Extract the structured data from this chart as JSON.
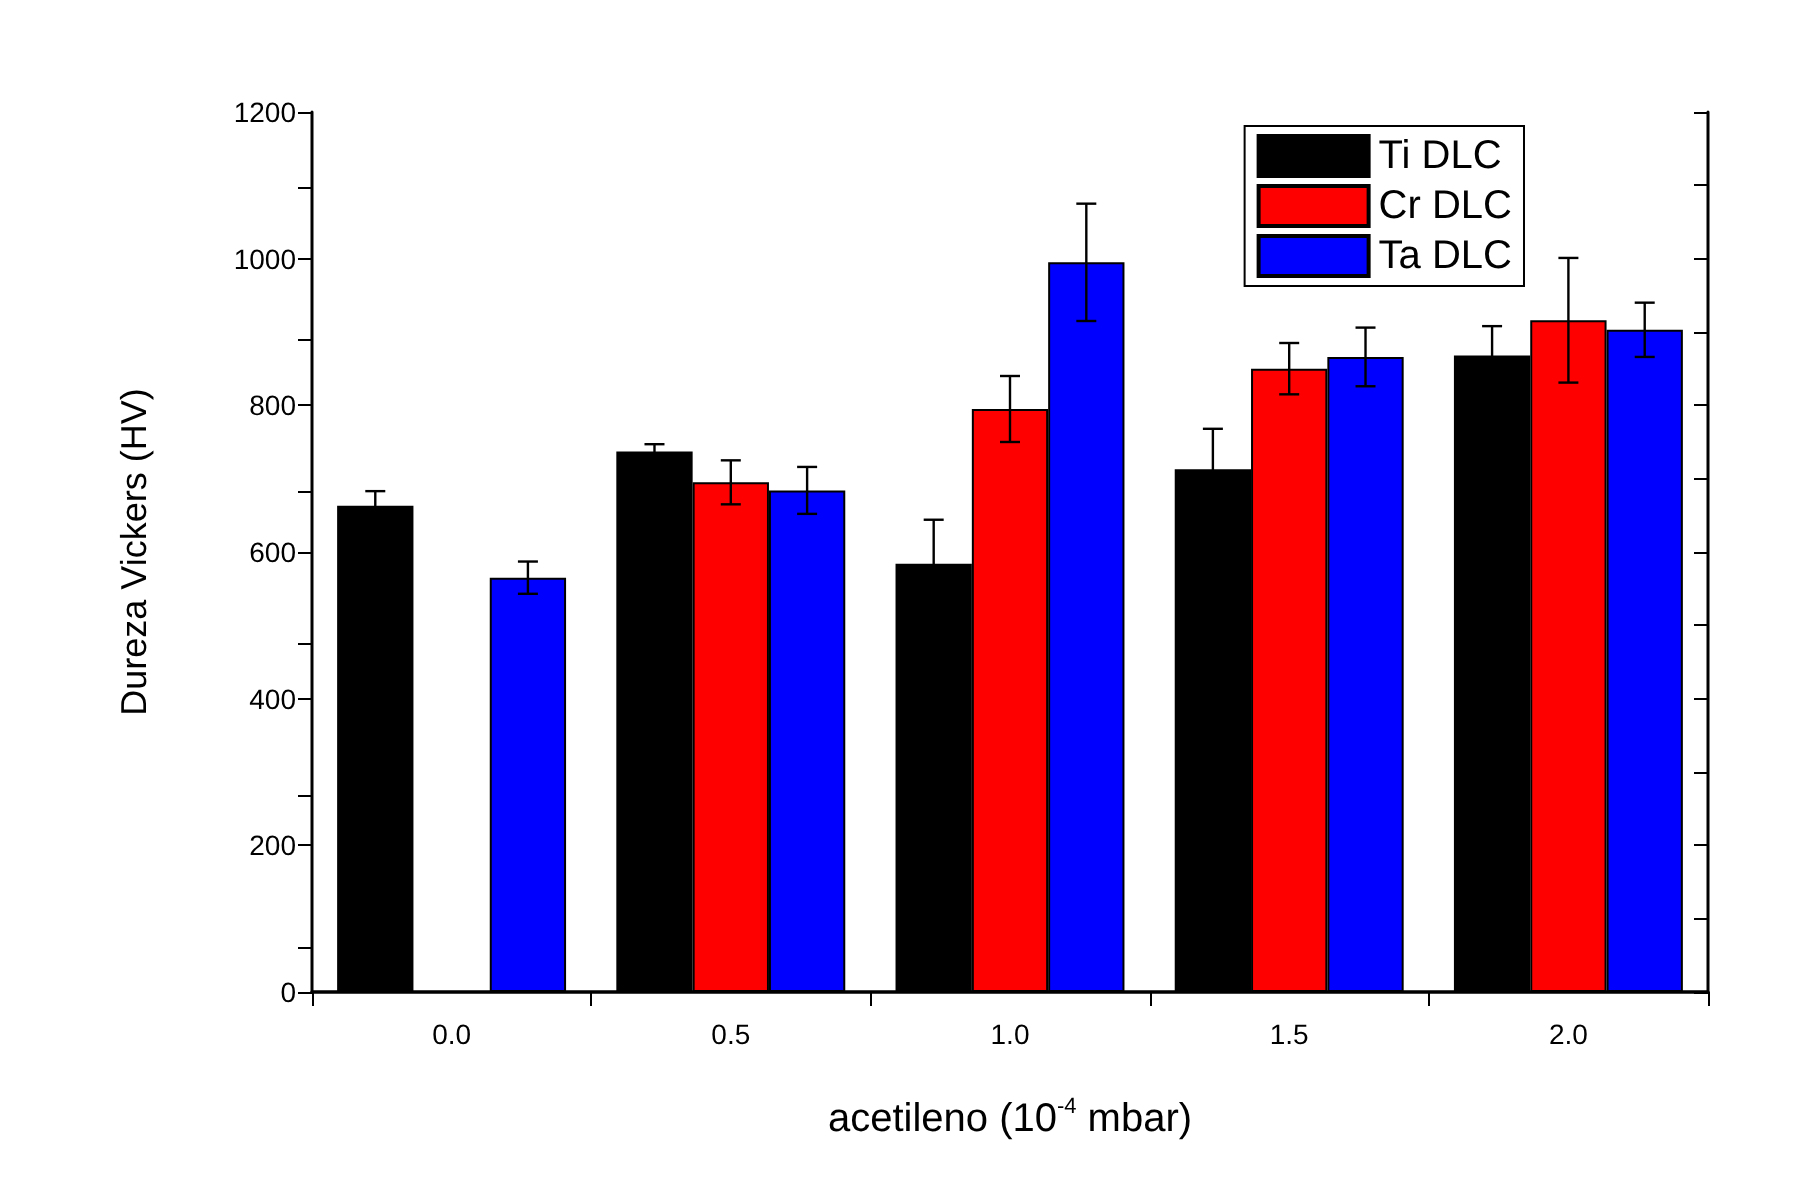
{
  "chart_data": {
    "type": "bar",
    "xlabel": "acetileno (10$^{-4}$ mbar)",
    "ylabel": "Dureza Vickers (HV)",
    "categories": [
      "0.0",
      "0.5",
      "1.0",
      "1.5",
      "2.0"
    ],
    "series": [
      {
        "name": "Ti DLC",
        "color": "#000000",
        "values": [
          663,
          737,
          584,
          713,
          868
        ],
        "errors": [
          20,
          10,
          60,
          55,
          40
        ]
      },
      {
        "name": "Cr DLC",
        "color": "#ff0000",
        "values": [
          null,
          695,
          795,
          850,
          916
        ],
        "errors": [
          null,
          30,
          45,
          35,
          85
        ]
      },
      {
        "name": "Ta DLC",
        "color": "#0000ff",
        "values": [
          565,
          684,
          995,
          866,
          903
        ],
        "errors": [
          22,
          32,
          80,
          40,
          37
        ]
      }
    ],
    "ylim": [
      0,
      1200
    ],
    "yticks": [
      0,
      200,
      400,
      600,
      800,
      1000,
      1200
    ],
    "grid": false,
    "legend": "top right"
  }
}
